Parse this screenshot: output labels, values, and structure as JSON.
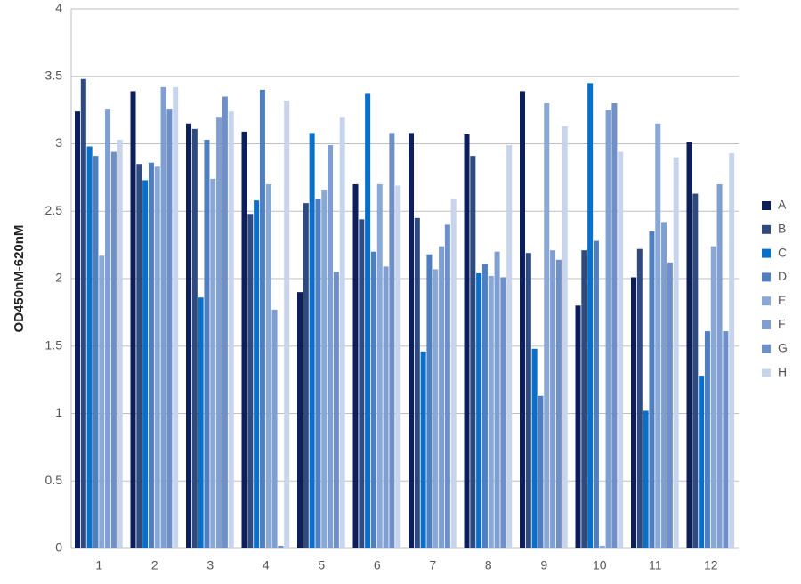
{
  "chart_data": {
    "type": "bar",
    "y_label": "OD450nM-620nM",
    "categories": [
      "1",
      "2",
      "3",
      "4",
      "5",
      "6",
      "7",
      "8",
      "9",
      "10",
      "11",
      "12"
    ],
    "series": [
      {
        "name": "A",
        "color": "#0c1f5c",
        "values": [
          3.24,
          3.39,
          3.15,
          3.09,
          1.9,
          2.7,
          3.08,
          3.07,
          3.39,
          1.8,
          2.01,
          3.01
        ]
      },
      {
        "name": "B",
        "color": "#2e4a7e",
        "values": [
          3.48,
          2.85,
          3.11,
          2.48,
          2.56,
          2.44,
          2.45,
          2.91,
          2.19,
          2.21,
          2.22,
          2.63
        ]
      },
      {
        "name": "C",
        "color": "#0a6fc9",
        "values": [
          2.98,
          2.73,
          1.86,
          2.58,
          3.08,
          3.37,
          1.46,
          2.04,
          1.48,
          3.45,
          1.02,
          1.28
        ]
      },
      {
        "name": "D",
        "color": "#4f7fc0",
        "values": [
          2.91,
          2.86,
          3.03,
          3.4,
          2.59,
          2.2,
          2.18,
          2.11,
          1.13,
          2.28,
          2.35,
          1.61
        ]
      },
      {
        "name": "E",
        "color": "#8aa8d6",
        "values": [
          2.17,
          2.83,
          2.74,
          2.7,
          2.66,
          2.7,
          2.07,
          2.02,
          3.3,
          0.02,
          3.15,
          2.24
        ]
      },
      {
        "name": "F",
        "color": "#7f9fd3",
        "values": [
          3.26,
          3.42,
          3.2,
          1.77,
          2.99,
          2.09,
          2.24,
          2.2,
          2.21,
          3.25,
          2.42,
          2.7
        ]
      },
      {
        "name": "G",
        "color": "#6f8fc8",
        "values": [
          2.94,
          3.26,
          3.35,
          0.02,
          2.05,
          3.08,
          2.4,
          2.01,
          2.14,
          3.3,
          2.12,
          1.61
        ]
      },
      {
        "name": "H",
        "color": "#c7d4ec",
        "values": [
          3.03,
          3.42,
          3.24,
          3.32,
          3.2,
          2.69,
          2.59,
          2.99,
          3.13,
          2.94,
          2.9,
          2.93
        ]
      }
    ],
    "ylim": [
      0,
      4
    ],
    "yticks": [
      0,
      0.5,
      1,
      1.5,
      2,
      2.5,
      3,
      3.5,
      4
    ],
    "grid": true,
    "legend": "right"
  }
}
